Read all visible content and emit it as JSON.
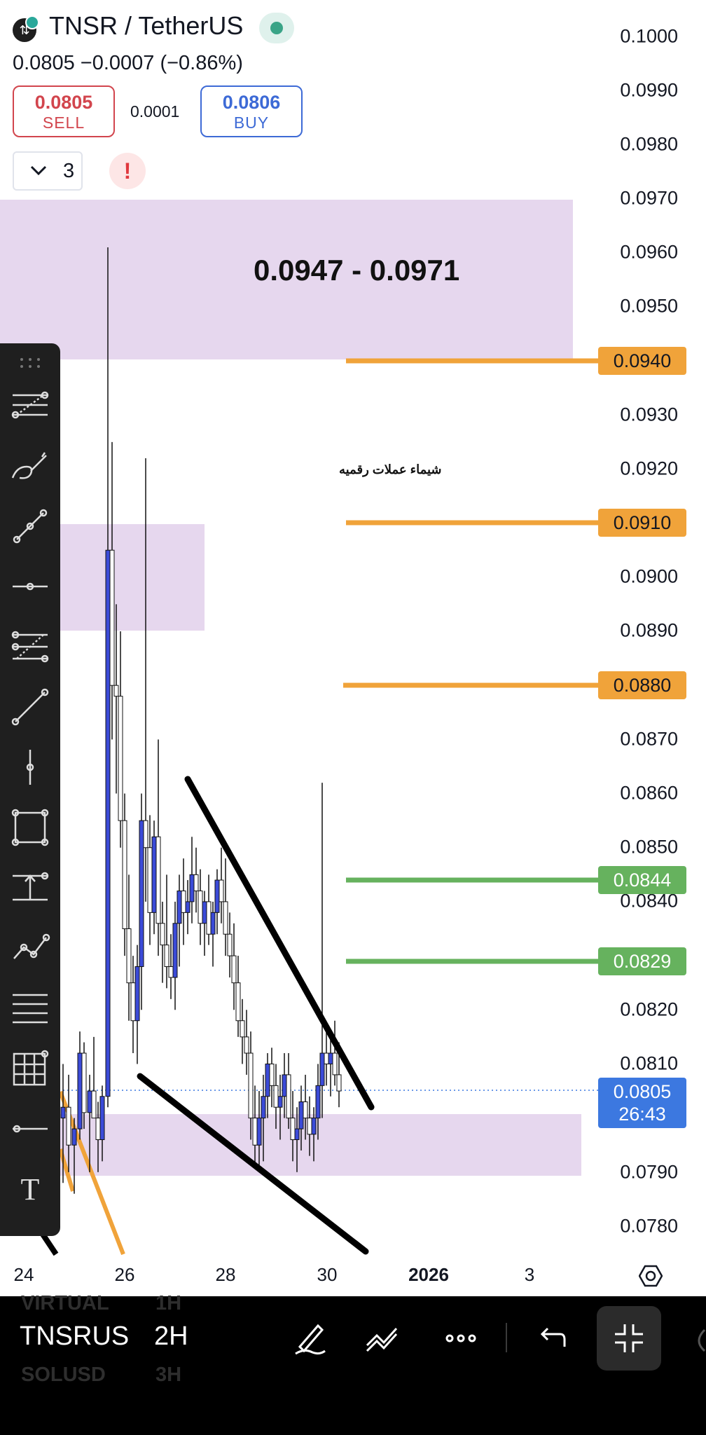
{
  "header": {
    "symbol": "TNSR / TetherUS",
    "price_change": "0.0805  −0.0007 (−0.86%)",
    "sell": {
      "price": "0.0805",
      "label": "SELL"
    },
    "buy": {
      "price": "0.0806",
      "label": "BUY"
    },
    "spread": "0.0001",
    "indicator_count": "3",
    "alert_glyph": "!"
  },
  "price_axis": {
    "labels": [
      "0.1000",
      "0.0990",
      "0.0980",
      "0.0970",
      "0.0960",
      "0.0950",
      "0.0930",
      "0.0920",
      "0.0900",
      "0.0890",
      "0.0870",
      "0.0860",
      "0.0850",
      "0.0840",
      "0.0820",
      "0.0810",
      "0.0790",
      "0.0780"
    ]
  },
  "levels": [
    {
      "value": "0.0940",
      "color": "#f0a33a"
    },
    {
      "value": "0.0910",
      "color": "#f0a33a"
    },
    {
      "value": "0.0880",
      "color": "#f0a33a"
    },
    {
      "value": "0.0844",
      "color": "#66b25e"
    },
    {
      "value": "0.0829",
      "color": "#66b25e"
    }
  ],
  "current": {
    "price": "0.0805",
    "countdown": "26:43"
  },
  "annotations": {
    "zone_label": "0.0947 - 0.0971",
    "note": "شيماء عملات رقميه"
  },
  "time_axis": {
    "labels": [
      "24",
      "26",
      "28",
      "30",
      "2026",
      "3"
    ]
  },
  "bottom_bar": {
    "symbol_prev": "VIRTUAL",
    "symbol_active": "TNSRUS",
    "symbol_next": "SOLUSD",
    "interval_prev": "1H",
    "interval_active": "2H",
    "interval_next": "3H"
  },
  "toolbar": {
    "text_tool_glyph": "T",
    "tools": [
      "fib-retracement",
      "brush",
      "trend-line",
      "horizontal-ray",
      "pitchfork",
      "ray",
      "vertical-line",
      "rectangle",
      "price-range",
      "path",
      "parallel-lines",
      "grid",
      "horizontal-line",
      "text"
    ]
  },
  "colors": {
    "accent_blue": "#3c78e0",
    "candle_up": "#3b4bd8",
    "zone_fill": "#e6d7ee",
    "level_orange": "#f0a33a",
    "level_green": "#66b25e"
  }
}
